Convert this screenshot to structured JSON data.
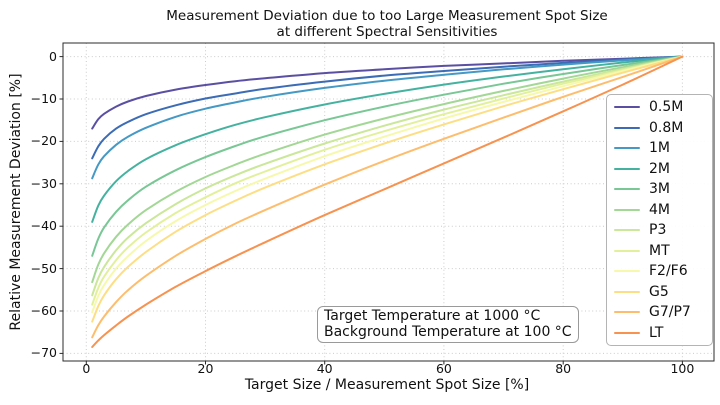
{
  "chart_data": {
    "type": "line",
    "title_line1": "Measurement Deviation due to too Large Measurement Spot Size",
    "title_line2": "at different Spectral Sensitivities",
    "xlabel": "Target Size / Measurement Spot Size [%]",
    "ylabel": "Relative Measurement Deviation [%]",
    "x_ticks": [
      0,
      20,
      40,
      60,
      80,
      100
    ],
    "y_ticks": [
      0,
      -10,
      -20,
      -30,
      -40,
      -50,
      -60,
      -70
    ],
    "xlim": [
      -3.9,
      105.3
    ],
    "ylim": [
      -71.8,
      3.2
    ],
    "grid": "dotted",
    "grid_color": "#cccccc",
    "legend_position": "center right inside",
    "x": [
      1,
      2,
      3,
      5,
      7,
      10,
      15,
      20,
      25,
      30,
      40,
      50,
      60,
      70,
      80,
      90,
      100
    ],
    "series": [
      {
        "name": "0.5M",
        "color": "#5a4fa2",
        "values": [
          -17.0,
          -14.8,
          -13.5,
          -11.8,
          -10.6,
          -9.3,
          -7.8,
          -6.7,
          -5.8,
          -5.1,
          -3.9,
          -3.0,
          -2.2,
          -1.6,
          -1.0,
          -0.5,
          0
        ]
      },
      {
        "name": "0.8M",
        "color": "#3b6cb5",
        "values": [
          -24.0,
          -21.2,
          -19.4,
          -17.0,
          -15.4,
          -13.6,
          -11.5,
          -9.9,
          -8.7,
          -7.6,
          -5.9,
          -4.5,
          -3.4,
          -2.4,
          -1.5,
          -0.7,
          0
        ]
      },
      {
        "name": "1M",
        "color": "#4499c5",
        "values": [
          -28.7,
          -25.5,
          -23.5,
          -20.8,
          -18.9,
          -16.8,
          -14.2,
          -12.3,
          -10.8,
          -9.5,
          -7.4,
          -5.7,
          -4.3,
          -3.0,
          -1.9,
          -0.9,
          0
        ]
      },
      {
        "name": "2M",
        "color": "#45b2a0",
        "values": [
          -39.0,
          -35.2,
          -32.8,
          -29.4,
          -27.0,
          -24.2,
          -20.9,
          -18.3,
          -16.1,
          -14.3,
          -11.3,
          -8.8,
          -6.6,
          -4.7,
          -3.0,
          -1.4,
          0
        ]
      },
      {
        "name": "3M",
        "color": "#78c795",
        "values": [
          -47.0,
          -43.0,
          -40.3,
          -36.6,
          -33.9,
          -30.7,
          -26.8,
          -23.7,
          -21.1,
          -18.8,
          -15.0,
          -11.8,
          -9.0,
          -6.4,
          -4.1,
          -2.0,
          0
        ]
      },
      {
        "name": "4M",
        "color": "#a3d795",
        "values": [
          -53.2,
          -49.1,
          -46.4,
          -42.5,
          -39.6,
          -36.2,
          -31.9,
          -28.4,
          -25.5,
          -22.9,
          -18.4,
          -14.6,
          -11.2,
          -8.1,
          -5.2,
          -2.5,
          0
        ]
      },
      {
        "name": "P3",
        "color": "#cbe79a",
        "values": [
          -56.3,
          -52.3,
          -49.6,
          -45.7,
          -42.7,
          -39.3,
          -34.8,
          -31.1,
          -28.0,
          -25.3,
          -20.5,
          -16.3,
          -12.5,
          -9.1,
          -5.9,
          -2.9,
          0
        ]
      },
      {
        "name": "MT",
        "color": "#e3f09b",
        "values": [
          -58.5,
          -54.6,
          -51.9,
          -48.0,
          -45.0,
          -41.5,
          -36.9,
          -33.2,
          -29.9,
          -27.1,
          -22.0,
          -17.6,
          -13.6,
          -9.9,
          -6.4,
          -3.2,
          0
        ]
      },
      {
        "name": "F2/F6",
        "color": "#f6f9ab",
        "values": [
          -60.3,
          -56.5,
          -53.9,
          -50.0,
          -47.1,
          -43.5,
          -38.8,
          -35.0,
          -31.7,
          -28.8,
          -23.5,
          -18.9,
          -14.6,
          -10.7,
          -7.0,
          -3.4,
          0
        ]
      },
      {
        "name": "G5",
        "color": "#fede84",
        "values": [
          -62.5,
          -58.9,
          -56.3,
          -52.5,
          -49.6,
          -46.1,
          -41.3,
          -37.4,
          -34.0,
          -30.9,
          -25.4,
          -20.5,
          -16.0,
          -11.7,
          -7.7,
          -3.8,
          0
        ]
      },
      {
        "name": "G7/P7",
        "color": "#fdbd6d",
        "values": [
          -66.2,
          -63.4,
          -61.3,
          -57.9,
          -55.1,
          -51.7,
          -47.0,
          -43.0,
          -39.4,
          -36.2,
          -30.2,
          -24.6,
          -19.4,
          -14.4,
          -9.5,
          -4.8,
          0
        ]
      },
      {
        "name": "LT",
        "color": "#f7924f",
        "values": [
          -68.5,
          -67.0,
          -65.7,
          -63.4,
          -61.3,
          -58.5,
          -54.3,
          -50.6,
          -47.1,
          -43.8,
          -37.4,
          -31.3,
          -25.2,
          -19.1,
          -12.9,
          -6.6,
          0
        ]
      }
    ],
    "annotation_line1": "Target Temperature at 1000 °C",
    "annotation_line2": "Background Temperature at 100 °C"
  }
}
